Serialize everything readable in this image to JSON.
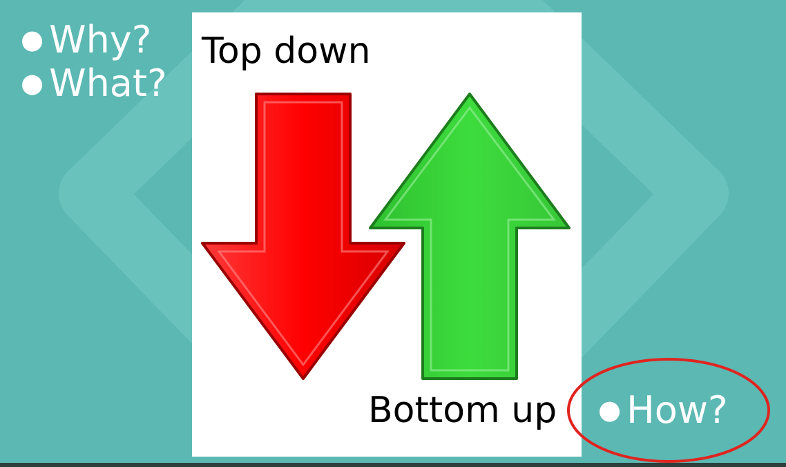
{
  "bullets": [
    {
      "label": "Why?"
    },
    {
      "label": "What?"
    }
  ],
  "bullet_glyph": "●",
  "card": {
    "title": "Top down",
    "subtitle": "Bottom up"
  },
  "highlighted_bullet": {
    "label": "How?"
  },
  "colors": {
    "background": "#5cb8b3",
    "down_arrow": "#ff0000",
    "up_arrow": "#3ddc3d",
    "highlight_circle": "#e0241f"
  },
  "icons": [
    "down-arrow-icon",
    "up-arrow-icon"
  ]
}
